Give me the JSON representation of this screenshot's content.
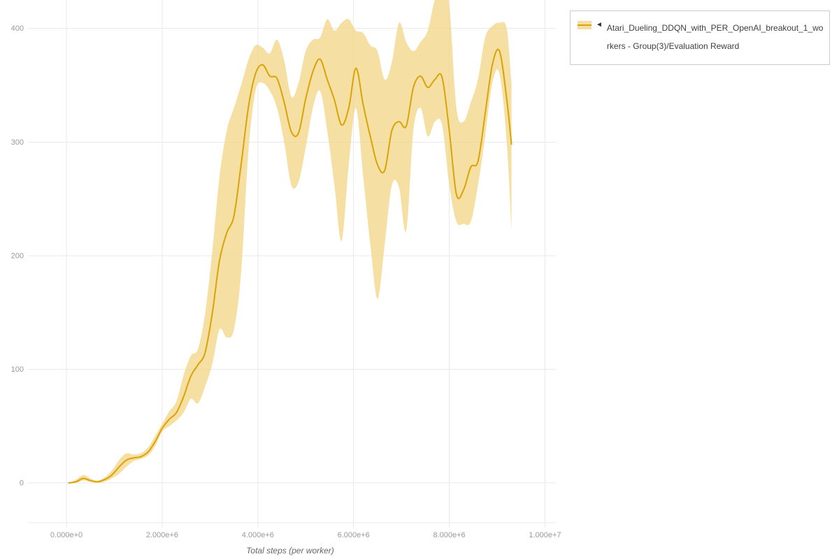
{
  "legend": {
    "collapse_icon": "◄",
    "label_line1": "Atari_Dueling_DDQN_with_PER_OpenAI_breakout_1_wo",
    "label_line2": "rkers - Group(3)/Evaluation Reward"
  },
  "chart": {
    "colors": {
      "line": "#d9a406",
      "band": "#f2d484",
      "band_opacity": 0.75,
      "grid": "#e9e9e9",
      "tick_text": "#999999",
      "axis_title": "#666666",
      "legend_border": "#cccccc",
      "legend_text": "#3d3d3d"
    }
  },
  "chart_data": {
    "type": "line",
    "title": "",
    "xlabel": "Total steps (per worker)",
    "ylabel": "",
    "grid": true,
    "legend_position": "top-right",
    "xlim": [
      -950000,
      10300000
    ],
    "ylim": [
      -35,
      425
    ],
    "x_tick_values": [
      0,
      2000000,
      4000000,
      6000000,
      8000000,
      10000000
    ],
    "x_tick_labels": [
      "0.000e+0",
      "2.000e+6",
      "4.000e+6",
      "6.000e+6",
      "8.000e+6",
      "1.000e+7"
    ],
    "y_ticks": [
      0,
      100,
      200,
      300,
      400
    ],
    "series": [
      {
        "name": "Atari_Dueling_DDQN_with_PER_OpenAI_breakout_1_workers - Group(3)/Evaluation Reward",
        "x": [
          50000,
          200000,
          350000,
          500000,
          650000,
          800000,
          950000,
          1100000,
          1250000,
          1400000,
          1550000,
          1700000,
          1850000,
          2000000,
          2150000,
          2300000,
          2450000,
          2600000,
          2750000,
          2900000,
          3050000,
          3200000,
          3350000,
          3500000,
          3650000,
          3800000,
          3950000,
          4100000,
          4250000,
          4400000,
          4550000,
          4700000,
          4850000,
          5000000,
          5150000,
          5300000,
          5450000,
          5600000,
          5750000,
          5900000,
          6050000,
          6200000,
          6350000,
          6500000,
          6650000,
          6800000,
          6950000,
          7100000,
          7250000,
          7400000,
          7550000,
          7700000,
          7850000,
          8000000,
          8150000,
          8300000,
          8450000,
          8600000,
          8750000,
          8900000,
          9050000,
          9200000,
          9300000
        ],
        "mean": [
          0,
          1,
          4,
          2,
          1,
          3,
          7,
          14,
          20,
          22,
          23,
          27,
          36,
          48,
          56,
          62,
          76,
          94,
          104,
          115,
          150,
          196,
          220,
          235,
          280,
          330,
          360,
          368,
          358,
          356,
          335,
          309,
          308,
          338,
          362,
          373,
          355,
          337,
          315,
          330,
          365,
          333,
          305,
          280,
          275,
          310,
          318,
          314,
          348,
          358,
          348,
          355,
          357,
          310,
          254,
          258,
          278,
          283,
          325,
          368,
          380,
          338,
          298
        ],
        "lower": [
          0,
          0,
          2,
          1,
          0,
          1,
          4,
          8,
          14,
          19,
          21,
          24,
          32,
          45,
          50,
          55,
          62,
          74,
          70,
          85,
          105,
          135,
          128,
          135,
          185,
          290,
          345,
          352,
          345,
          330,
          300,
          262,
          265,
          295,
          330,
          345,
          310,
          262,
          213,
          280,
          330,
          270,
          210,
          162,
          210,
          262,
          260,
          222,
          310,
          330,
          305,
          318,
          315,
          262,
          230,
          228,
          230,
          262,
          305,
          352,
          360,
          300,
          222
        ],
        "upper": [
          0,
          3,
          7,
          4,
          2,
          5,
          11,
          20,
          26,
          25,
          26,
          31,
          41,
          52,
          63,
          72,
          95,
          112,
          118,
          150,
          205,
          270,
          310,
          330,
          350,
          372,
          385,
          383,
          378,
          390,
          372,
          340,
          352,
          380,
          390,
          392,
          408,
          398,
          405,
          408,
          398,
          396,
          385,
          380,
          355,
          370,
          405,
          388,
          380,
          388,
          398,
          425,
          432,
          420,
          330,
          318,
          335,
          355,
          392,
          402,
          405,
          400,
          352
        ]
      }
    ]
  }
}
